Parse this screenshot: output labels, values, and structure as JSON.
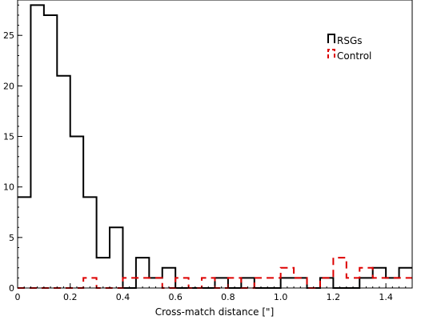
{
  "chart_data": {
    "type": "histogram",
    "title": "",
    "xlabel": "Cross-match distance [\"]",
    "ylabel": "",
    "xlim": [
      0,
      1.5
    ],
    "ylim": [
      0,
      28.5
    ],
    "bin_width": 0.05,
    "bin_edges_start": 0,
    "x_ticks": [
      "0",
      "0.2",
      "0.4",
      "0.6",
      "0.8",
      "1.0",
      "1.2",
      "1.4"
    ],
    "x_tick_values": [
      0,
      0.2,
      0.4,
      0.6,
      0.8,
      1.0,
      1.2,
      1.4
    ],
    "y_ticks": [
      "0",
      "5",
      "10",
      "15",
      "20",
      "25"
    ],
    "y_tick_values": [
      0,
      5,
      10,
      15,
      20,
      25
    ],
    "grid": false,
    "legend_position": "top-right",
    "series": [
      {
        "name": "RSGs",
        "color": "#000000",
        "dashed": false,
        "values": [
          9,
          28,
          27,
          21,
          15,
          9,
          3,
          6,
          0,
          3,
          1,
          2,
          0,
          0,
          0,
          1,
          0,
          1,
          0,
          0,
          1,
          1,
          0,
          1,
          0,
          0,
          1,
          2,
          1,
          2
        ]
      },
      {
        "name": "Control",
        "color": "#dd0000",
        "dashed": true,
        "values": [
          0,
          0,
          0,
          0,
          0,
          1,
          0,
          0,
          1,
          1,
          1,
          0,
          1,
          0,
          1,
          0,
          1,
          0,
          1,
          1,
          2,
          1,
          0,
          1,
          3,
          1,
          2,
          1,
          1,
          1
        ]
      }
    ]
  }
}
